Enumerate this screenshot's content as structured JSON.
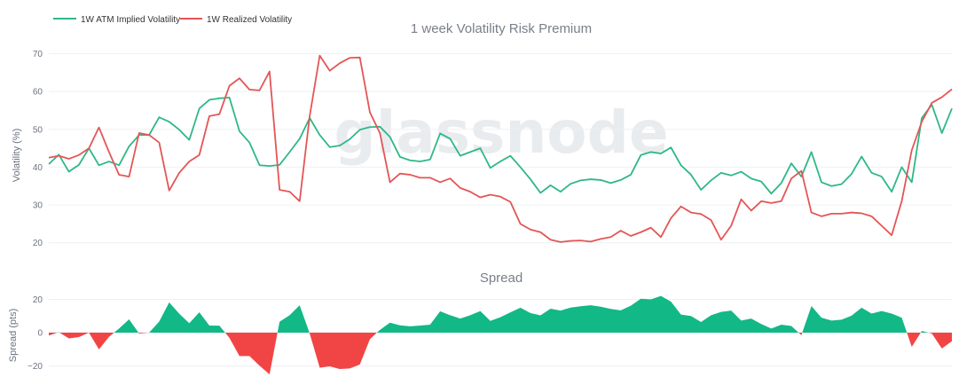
{
  "watermark": "glassnode",
  "colors": {
    "implied": "#2eb886",
    "realized": "#e35656",
    "spread_pos": "#12b886",
    "spread_neg": "#f14545",
    "grid": "#eef0f3"
  },
  "chart_data": [
    {
      "type": "line",
      "title": "1 week Volatility Risk Premium",
      "ylabel": "Volatility (%)",
      "ylim": [
        15,
        72
      ],
      "yticks": [
        "20",
        "30",
        "40",
        "50",
        "60",
        "70"
      ],
      "legend": "top-left",
      "grid": true,
      "series": [
        {
          "name": "1W ATM Implied Volatility",
          "color": "#2eb886",
          "values": [
            40.8,
            43.3,
            38.8,
            40.6,
            45.0,
            40.5,
            41.5,
            40.5,
            45.5,
            48.5,
            48.5,
            53.2,
            52.0,
            49.9,
            47.2,
            55.5,
            57.8,
            58.2,
            58.4,
            49.5,
            46.5,
            40.5,
            40.3,
            40.6,
            44.0,
            47.5,
            53.0,
            48.5,
            45.3,
            45.7,
            47.4,
            49.9,
            50.6,
            50.7,
            48.0,
            42.7,
            41.8,
            41.5,
            42.0,
            48.9,
            47.5,
            43.0,
            44.0,
            45.0,
            39.8,
            41.5,
            43.0,
            40.0,
            36.8,
            33.2,
            35.2,
            33.5,
            35.6,
            36.5,
            36.8,
            36.6,
            35.8,
            36.6,
            38.0,
            43.2,
            44.0,
            43.6,
            45.2,
            40.5,
            38.0,
            34.0,
            36.5,
            38.5,
            37.8,
            38.8,
            37.0,
            36.2,
            33.0,
            35.8,
            41.0,
            37.5,
            44.0,
            36.0,
            35.0,
            35.5,
            38.2,
            42.8,
            38.5,
            37.5,
            33.5,
            40.0,
            36.0,
            53.0,
            56.5,
            49.0,
            55.5
          ]
        },
        {
          "name": "1W Realized Volatility",
          "color": "#e35656",
          "values": [
            42.5,
            43.0,
            42.2,
            43.2,
            45.0,
            50.5,
            44.0,
            38.0,
            37.5,
            49.0,
            48.5,
            46.5,
            33.8,
            38.5,
            41.5,
            43.2,
            53.5,
            54.0,
            61.5,
            63.5,
            60.5,
            60.3,
            65.3,
            34.0,
            33.5,
            31.0,
            53.5,
            69.5,
            65.5,
            67.5,
            68.9,
            69.0,
            54.5,
            49.0,
            36.0,
            38.3,
            38.0,
            37.2,
            37.2,
            36.0,
            37.0,
            34.5,
            33.5,
            32.0,
            32.7,
            32.2,
            30.8,
            25.0,
            23.5,
            22.8,
            20.8,
            20.2,
            20.5,
            20.6,
            20.3,
            21.0,
            21.5,
            23.2,
            21.8,
            22.8,
            24.0,
            21.5,
            26.5,
            29.6,
            28.0,
            27.6,
            26.0,
            20.8,
            24.5,
            31.5,
            28.5,
            31.0,
            30.5,
            31.0,
            37.0,
            39.0,
            28.0,
            27.0,
            27.7,
            27.7,
            28.0,
            27.8,
            27.0,
            24.5,
            22.0,
            31.0,
            44.5,
            52.0,
            57.0,
            58.5,
            60.6
          ]
        }
      ]
    },
    {
      "type": "area",
      "title": "Spread",
      "ylabel": "Spread (pts)",
      "ylim": [
        -25,
        24
      ],
      "yticks": [
        "20",
        "0",
        "−20"
      ],
      "grid": true,
      "series": [
        {
          "name": "Spread",
          "values": [
            -1.7,
            0.3,
            -3.4,
            -2.6,
            0.0,
            -10.0,
            -2.5,
            2.5,
            8.0,
            -0.5,
            0.0,
            6.7,
            18.2,
            11.4,
            5.7,
            12.3,
            4.3,
            4.2,
            -3.1,
            -14.0,
            -14.0,
            -19.8,
            -25.0,
            6.6,
            10.5,
            16.5,
            -0.5,
            -21.0,
            -20.2,
            -21.8,
            -21.5,
            -19.1,
            -3.9,
            1.7,
            6.0,
            4.4,
            3.8,
            4.3,
            4.8,
            12.9,
            10.5,
            8.5,
            10.5,
            13.0,
            7.1,
            9.3,
            12.2,
            15.0,
            11.8,
            10.4,
            14.4,
            13.3,
            15.1,
            15.9,
            16.5,
            15.6,
            14.3,
            13.4,
            16.2,
            20.4,
            20.0,
            22.1,
            18.7,
            10.9,
            10.0,
            6.4,
            10.5,
            12.5,
            13.3,
            7.3,
            8.5,
            5.2,
            2.5,
            4.8,
            4.0,
            -1.5,
            16.0,
            9.0,
            7.3,
            7.8,
            10.2,
            15.0,
            11.5,
            13.0,
            11.5,
            9.0,
            -8.5,
            1.0,
            -0.5,
            -9.5,
            -5.1
          ]
        }
      ]
    }
  ]
}
